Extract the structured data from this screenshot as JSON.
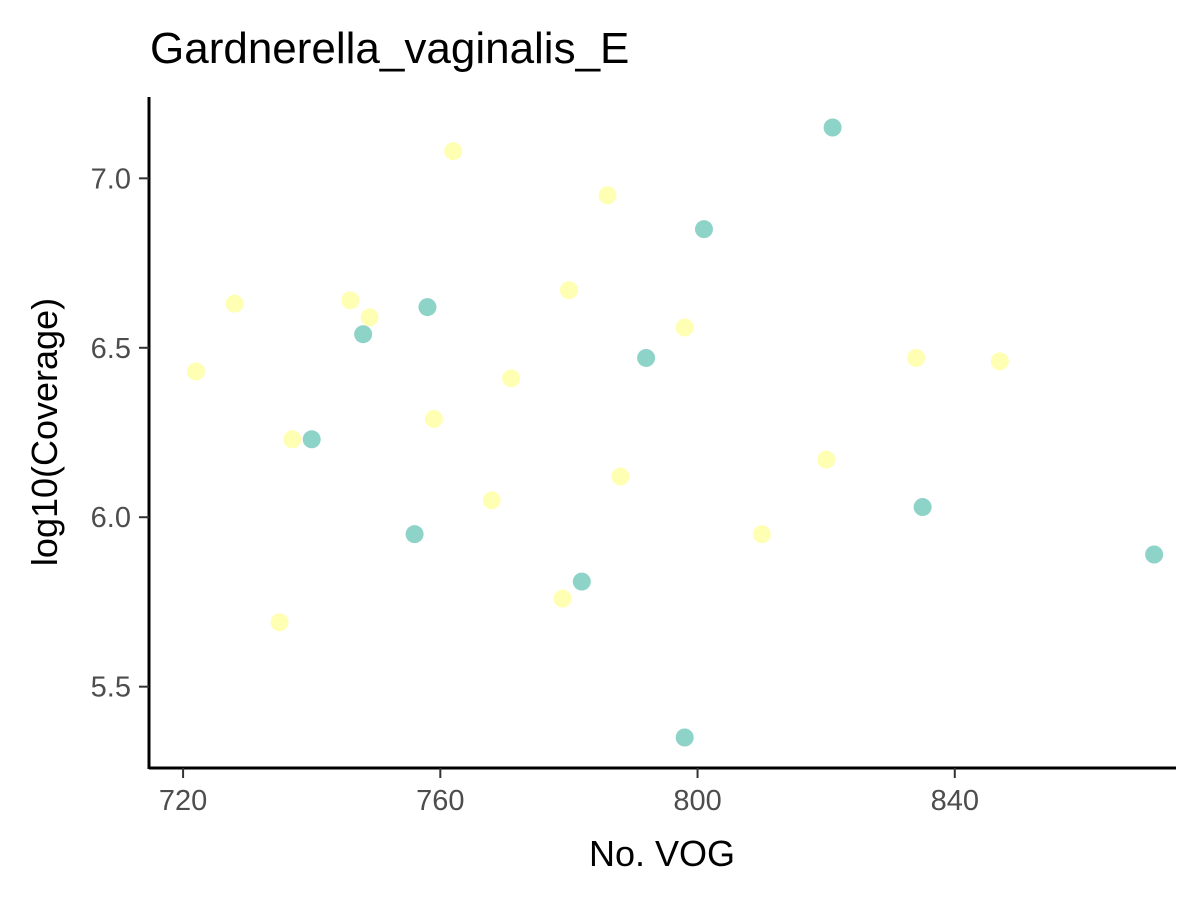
{
  "chart_data": {
    "type": "scatter",
    "title": "Gardnerella_vaginalis_E",
    "xlabel": "No. VOG",
    "ylabel": "log10(Coverage)",
    "xlim": [
      714.7,
      874.4
    ],
    "ylim": [
      5.26,
      7.24
    ],
    "x_ticks": [
      720,
      760,
      800,
      840
    ],
    "x_tick_labels": [
      "720",
      "760",
      "800",
      "840"
    ],
    "y_ticks": [
      5.5,
      6.0,
      6.5,
      7.0
    ],
    "y_tick_labels": [
      "5.5",
      "6.0",
      "6.5",
      "7.0"
    ],
    "grid": false,
    "legend": "none",
    "series": [
      {
        "color": "#8dd3c7",
        "points": [
          {
            "x": 821,
            "y": 7.15
          },
          {
            "x": 801,
            "y": 6.85
          },
          {
            "x": 758,
            "y": 6.62
          },
          {
            "x": 748,
            "y": 6.54
          },
          {
            "x": 792,
            "y": 6.47
          },
          {
            "x": 740,
            "y": 6.23
          },
          {
            "x": 835,
            "y": 6.03
          },
          {
            "x": 756,
            "y": 5.95
          },
          {
            "x": 871,
            "y": 5.89
          },
          {
            "x": 782,
            "y": 5.81
          },
          {
            "x": 798,
            "y": 5.35
          }
        ]
      },
      {
        "color": "#ffffb3",
        "points": [
          {
            "x": 762,
            "y": 7.08
          },
          {
            "x": 786,
            "y": 6.95
          },
          {
            "x": 780,
            "y": 6.67
          },
          {
            "x": 746,
            "y": 6.64
          },
          {
            "x": 728,
            "y": 6.63
          },
          {
            "x": 749,
            "y": 6.59
          },
          {
            "x": 798,
            "y": 6.56
          },
          {
            "x": 834,
            "y": 6.47
          },
          {
            "x": 847,
            "y": 6.46
          },
          {
            "x": 722,
            "y": 6.43
          },
          {
            "x": 771,
            "y": 6.41
          },
          {
            "x": 759,
            "y": 6.29
          },
          {
            "x": 737,
            "y": 6.23
          },
          {
            "x": 820,
            "y": 6.17
          },
          {
            "x": 788,
            "y": 6.12
          },
          {
            "x": 768,
            "y": 6.05
          },
          {
            "x": 810,
            "y": 5.95
          },
          {
            "x": 779,
            "y": 5.76
          },
          {
            "x": 735,
            "y": 5.69
          }
        ]
      }
    ]
  }
}
